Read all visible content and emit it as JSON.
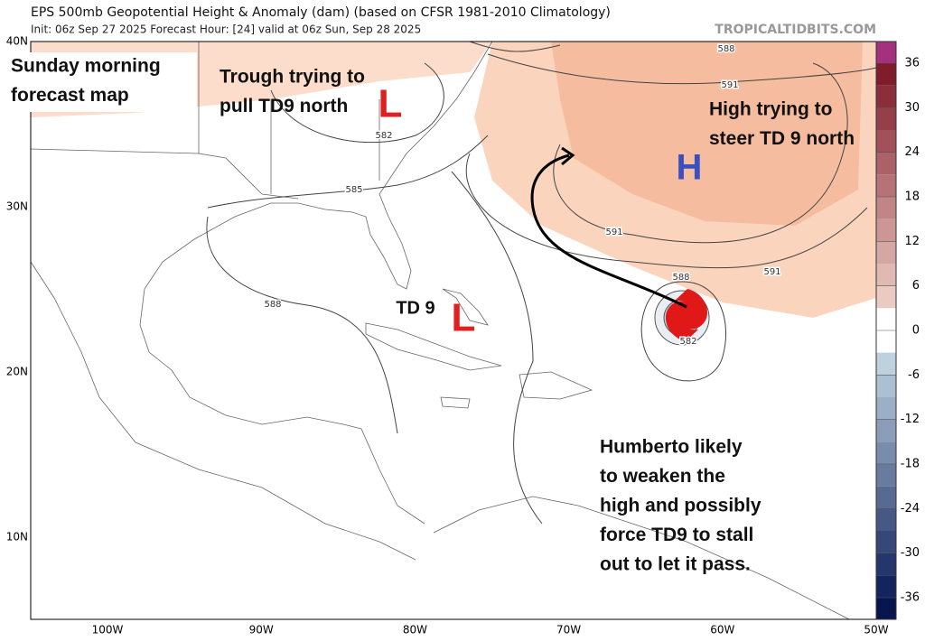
{
  "header": {
    "title": "EPS 500mb Geopotential Height & Anomaly (dam) (based on CFSR 1981-2010 Climatology)",
    "init": "Init: 06z Sep 27 2025   Forecast Hour: [24]   valid at 06z Sun, Sep 28 2025",
    "site": "TROPICALTIDBITS.COM"
  },
  "map": {
    "lat_labels": [
      "40N",
      "30N",
      "20N",
      "10N"
    ],
    "lon_labels": [
      "100W",
      "90W",
      "80W",
      "70W",
      "60W",
      "50W"
    ],
    "contour_labels": [
      "588",
      "591",
      "582",
      "585",
      "591",
      "591",
      "588",
      "588",
      "582"
    ],
    "markers": [
      "L",
      "H",
      "L",
      "TD 9"
    ]
  },
  "colorbar": {
    "ticks": [
      36,
      30,
      24,
      18,
      12,
      6,
      0,
      -6,
      -12,
      -18,
      -24,
      -30,
      -36
    ]
  },
  "annotations": [
    [
      "Sunday morning",
      "forecast map"
    ],
    [
      "Trough trying to",
      "pull TD9 north"
    ],
    [
      "High trying to",
      "steer TD 9 north"
    ],
    [
      "Humberto likely",
      "to weaken the",
      "high and possibly",
      "force TD9 to stall",
      "out to let it pass."
    ]
  ]
}
